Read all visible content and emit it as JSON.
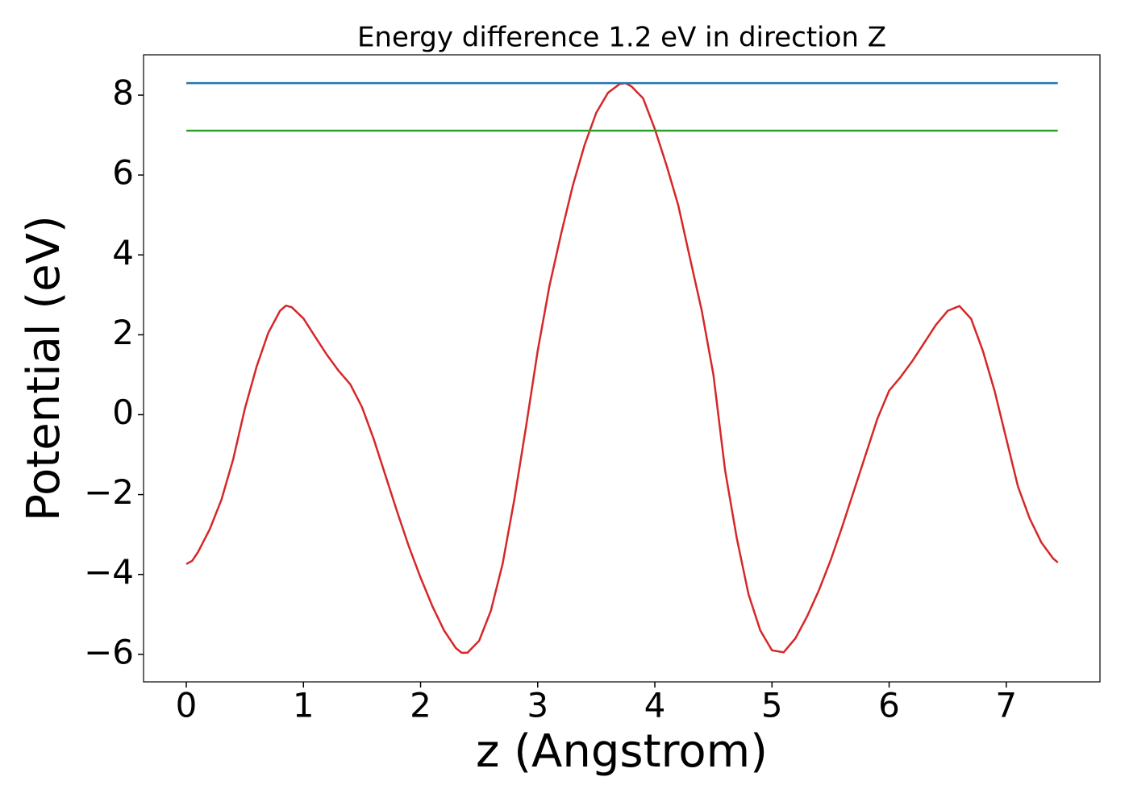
{
  "chart_data": {
    "type": "line",
    "title": "Energy difference 1.2 eV in direction Z",
    "xlabel": "z (Angstrom)",
    "ylabel": "Potential (eV)",
    "xlim": [
      -0.365,
      7.8
    ],
    "ylim": [
      -6.69,
      9.01
    ],
    "xticks": [
      0,
      1,
      2,
      3,
      4,
      5,
      6,
      7
    ],
    "yticks": [
      {
        "value": -6,
        "label": "−6"
      },
      {
        "value": -4,
        "label": "−4"
      },
      {
        "value": -2,
        "label": "−2"
      },
      0,
      2,
      4,
      6,
      8
    ],
    "grid": false,
    "series": [
      {
        "color": "#d62728",
        "x": [
          0,
          0.05,
          0.1,
          0.2,
          0.3,
          0.4,
          0.5,
          0.6,
          0.7,
          0.8,
          0.85,
          0.9,
          1.0,
          1.1,
          1.2,
          1.3,
          1.4,
          1.5,
          1.6,
          1.7,
          1.8,
          1.9,
          2.0,
          2.1,
          2.2,
          2.3,
          2.35,
          2.4,
          2.5,
          2.6,
          2.7,
          2.8,
          2.9,
          3.0,
          3.1,
          3.2,
          3.3,
          3.4,
          3.5,
          3.6,
          3.7,
          3.75,
          3.8,
          3.9,
          4.0,
          4.1,
          4.2,
          4.3,
          4.4,
          4.5,
          4.6,
          4.7,
          4.8,
          4.9,
          5.0,
          5.1,
          5.2,
          5.3,
          5.4,
          5.5,
          5.6,
          5.7,
          5.8,
          5.9,
          6.0,
          6.1,
          6.2,
          6.3,
          6.4,
          6.5,
          6.6,
          6.7,
          6.8,
          6.9,
          7.0,
          7.1,
          7.2,
          7.3,
          7.4,
          7.44
        ],
        "values": [
          -3.74,
          -3.66,
          -3.44,
          -2.87,
          -2.13,
          -1.12,
          0.15,
          1.2,
          2.05,
          2.6,
          2.73,
          2.69,
          2.41,
          1.95,
          1.5,
          1.1,
          0.76,
          0.19,
          -0.61,
          -1.52,
          -2.43,
          -3.3,
          -4.08,
          -4.79,
          -5.4,
          -5.84,
          -5.96,
          -5.96,
          -5.66,
          -4.91,
          -3.74,
          -2.13,
          -0.31,
          1.6,
          3.22,
          4.53,
          5.74,
          6.75,
          7.56,
          8.06,
          8.28,
          8.3,
          8.22,
          7.92,
          7.15,
          6.24,
          5.24,
          3.92,
          2.61,
          1.0,
          -1.4,
          -3.1,
          -4.5,
          -5.4,
          -5.9,
          -5.95,
          -5.6,
          -5.05,
          -4.4,
          -3.65,
          -2.8,
          -1.9,
          -1.0,
          -0.1,
          0.6,
          0.95,
          1.35,
          1.8,
          2.25,
          2.6,
          2.72,
          2.4,
          1.6,
          0.6,
          -0.6,
          -1.8,
          -2.6,
          -3.2,
          -3.6,
          -3.7
        ]
      },
      {
        "color": "#1f77b4",
        "x": [
          0,
          7.44
        ],
        "values": [
          8.3,
          8.3
        ]
      },
      {
        "color": "#2ca02c",
        "x": [
          0,
          7.44
        ],
        "values": [
          7.11,
          7.11
        ]
      }
    ]
  }
}
